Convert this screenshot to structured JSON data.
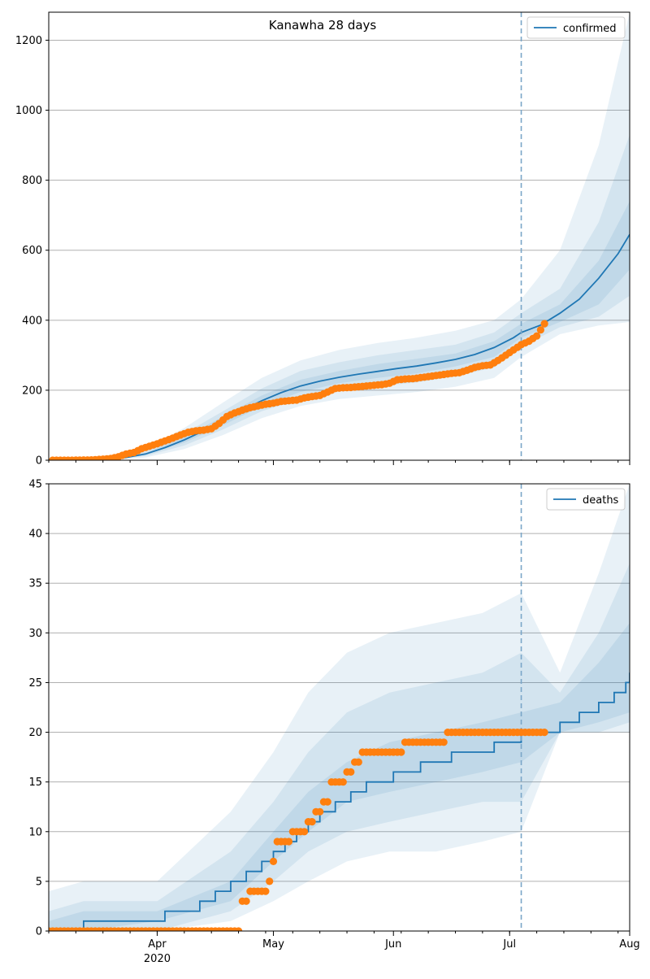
{
  "figure": {
    "title": "Kanawha 28 days"
  },
  "colors": {
    "model": "#1f77b4",
    "observed": "#ff7f0e",
    "band": "#1f77b4",
    "grid": "#b0b0b0",
    "cutoff": "#7aa6c8"
  },
  "x_axis": {
    "ticks": [
      {
        "date": "2020-04-01",
        "label": "Apr",
        "sublabel": "2020"
      },
      {
        "date": "2020-05-01",
        "label": "May",
        "sublabel": ""
      },
      {
        "date": "2020-06-01",
        "label": "Jun",
        "sublabel": ""
      },
      {
        "date": "2020-07-01",
        "label": "Jul",
        "sublabel": ""
      },
      {
        "date": "2020-08-01",
        "label": "Aug",
        "sublabel": ""
      }
    ],
    "range": [
      "2020-03-04",
      "2020-08-01"
    ]
  },
  "chart_data": [
    {
      "type": "line",
      "panel": "top",
      "title": "Kanawha 28 days",
      "legend": {
        "label": "confirmed",
        "position": "top-right"
      },
      "ylim": [
        0,
        1280
      ],
      "yticks": [
        0,
        200,
        400,
        600,
        800,
        1000,
        1200
      ],
      "grid": "horizontal",
      "cutoff_date": "2020-07-04",
      "model": {
        "x": [
          "2020-03-04",
          "2020-03-14",
          "2020-03-19",
          "2020-03-24",
          "2020-03-29",
          "2020-04-03",
          "2020-04-08",
          "2020-04-13",
          "2020-04-18",
          "2020-04-23",
          "2020-04-28",
          "2020-05-03",
          "2020-05-08",
          "2020-05-13",
          "2020-05-18",
          "2020-05-23",
          "2020-05-28",
          "2020-06-02",
          "2020-06-07",
          "2020-06-12",
          "2020-06-17",
          "2020-06-22",
          "2020-06-27",
          "2020-07-02",
          "2020-07-04",
          "2020-07-09",
          "2020-07-14",
          "2020-07-19",
          "2020-07-24",
          "2020-07-29",
          "2020-08-01"
        ],
        "y": [
          0,
          1,
          3,
          8,
          18,
          36,
          58,
          84,
          112,
          143,
          170,
          193,
          212,
          226,
          237,
          246,
          254,
          262,
          269,
          278,
          288,
          302,
          322,
          350,
          365,
          386,
          420,
          460,
          520,
          590,
          645
        ]
      },
      "bands": [
        {
          "level": "inner",
          "x": [
            "2020-03-04",
            "2020-03-19",
            "2020-03-29",
            "2020-04-08",
            "2020-04-18",
            "2020-04-28",
            "2020-05-08",
            "2020-05-18",
            "2020-05-28",
            "2020-06-07",
            "2020-06-17",
            "2020-06-27",
            "2020-07-04",
            "2020-07-14",
            "2020-07-24",
            "2020-08-01"
          ],
          "upper": [
            0,
            4,
            21,
            66,
            125,
            185,
            230,
            255,
            275,
            290,
            305,
            340,
            390,
            445,
            570,
            740
          ],
          "lower": [
            0,
            2,
            15,
            50,
            100,
            155,
            195,
            220,
            235,
            248,
            268,
            295,
            350,
            395,
            445,
            545
          ]
        },
        {
          "level": "middle",
          "x": [
            "2020-03-04",
            "2020-03-19",
            "2020-03-29",
            "2020-04-08",
            "2020-04-18",
            "2020-04-28",
            "2020-05-08",
            "2020-05-18",
            "2020-05-28",
            "2020-06-07",
            "2020-06-17",
            "2020-06-27",
            "2020-07-04",
            "2020-07-14",
            "2020-07-24",
            "2020-08-01"
          ],
          "upper": [
            0,
            6,
            25,
            76,
            140,
            205,
            255,
            280,
            300,
            315,
            330,
            365,
            420,
            490,
            680,
            930
          ],
          "lower": [
            0,
            1,
            12,
            42,
            88,
            140,
            175,
            200,
            212,
            222,
            240,
            265,
            325,
            380,
            410,
            470
          ]
        },
        {
          "level": "outer",
          "x": [
            "2020-03-04",
            "2020-03-19",
            "2020-03-29",
            "2020-04-08",
            "2020-04-18",
            "2020-04-28",
            "2020-05-08",
            "2020-05-18",
            "2020-05-28",
            "2020-06-07",
            "2020-06-17",
            "2020-06-27",
            "2020-07-04",
            "2020-07-14",
            "2020-07-24",
            "2020-08-01"
          ],
          "upper": [
            0,
            10,
            33,
            92,
            165,
            235,
            285,
            315,
            335,
            350,
            370,
            400,
            460,
            600,
            900,
            1280
          ],
          "lower": [
            0,
            0,
            8,
            32,
            72,
            120,
            155,
            175,
            185,
            195,
            210,
            235,
            295,
            360,
            385,
            395
          ]
        }
      ],
      "observed": {
        "x": [
          "2020-03-05",
          "2020-03-10",
          "2020-03-15",
          "2020-03-18",
          "2020-03-20",
          "2020-03-22",
          "2020-03-24",
          "2020-03-26",
          "2020-03-28",
          "2020-03-30",
          "2020-04-01",
          "2020-04-03",
          "2020-04-05",
          "2020-04-07",
          "2020-04-09",
          "2020-04-11",
          "2020-04-13",
          "2020-04-15",
          "2020-04-17",
          "2020-04-19",
          "2020-04-21",
          "2020-04-23",
          "2020-04-25",
          "2020-04-27",
          "2020-04-29",
          "2020-05-01",
          "2020-05-03",
          "2020-05-05",
          "2020-05-07",
          "2020-05-09",
          "2020-05-11",
          "2020-05-13",
          "2020-05-15",
          "2020-05-17",
          "2020-05-19",
          "2020-05-21",
          "2020-05-23",
          "2020-05-25",
          "2020-05-27",
          "2020-05-29",
          "2020-05-31",
          "2020-06-02",
          "2020-06-04",
          "2020-06-06",
          "2020-06-08",
          "2020-06-10",
          "2020-06-12",
          "2020-06-14",
          "2020-06-16",
          "2020-06-18",
          "2020-06-20",
          "2020-06-22",
          "2020-06-24",
          "2020-06-26",
          "2020-06-28",
          "2020-06-30",
          "2020-07-02",
          "2020-07-04",
          "2020-07-06",
          "2020-07-08",
          "2020-07-10"
        ],
        "y": [
          0,
          0,
          1,
          3,
          5,
          10,
          18,
          22,
          33,
          40,
          47,
          55,
          63,
          72,
          80,
          84,
          86,
          90,
          105,
          125,
          135,
          143,
          150,
          155,
          160,
          163,
          168,
          170,
          172,
          178,
          182,
          185,
          195,
          205,
          207,
          208,
          210,
          212,
          214,
          216,
          220,
          230,
          232,
          233,
          236,
          239,
          242,
          245,
          248,
          250,
          257,
          265,
          270,
          272,
          285,
          300,
          315,
          330,
          340,
          355,
          390
        ]
      }
    },
    {
      "type": "line",
      "panel": "bottom",
      "legend": {
        "label": "deaths",
        "position": "top-right"
      },
      "ylim": [
        0,
        45
      ],
      "yticks": [
        0,
        5,
        10,
        15,
        20,
        25,
        30,
        35,
        40,
        45
      ],
      "grid": "horizontal",
      "cutoff_date": "2020-07-04",
      "model": {
        "x": [
          "2020-03-04",
          "2020-03-13",
          "2020-04-03",
          "2020-04-12",
          "2020-04-16",
          "2020-04-20",
          "2020-04-24",
          "2020-04-28",
          "2020-05-01",
          "2020-05-04",
          "2020-05-07",
          "2020-05-10",
          "2020-05-13",
          "2020-05-17",
          "2020-05-21",
          "2020-05-25",
          "2020-06-01",
          "2020-06-08",
          "2020-06-16",
          "2020-06-27",
          "2020-07-04",
          "2020-07-09",
          "2020-07-14",
          "2020-07-19",
          "2020-07-24",
          "2020-07-28",
          "2020-07-31",
          "2020-08-01"
        ],
        "y": [
          0,
          1,
          2,
          3,
          4,
          5,
          6,
          7,
          8,
          9,
          10,
          11,
          12,
          13,
          14,
          15,
          16,
          17,
          18,
          19,
          20,
          20,
          21,
          22,
          23,
          24,
          25,
          26
        ]
      },
      "bands": [
        {
          "level": "inner",
          "x": [
            "2020-03-04",
            "2020-03-13",
            "2020-04-01",
            "2020-04-20",
            "2020-05-01",
            "2020-05-10",
            "2020-05-20",
            "2020-05-31",
            "2020-06-12",
            "2020-06-24",
            "2020-07-04",
            "2020-07-14",
            "2020-07-24",
            "2020-08-01"
          ],
          "upper": [
            1,
            2,
            2,
            5,
            10,
            14,
            17,
            19,
            20,
            21,
            22,
            23,
            27,
            31
          ],
          "lower": [
            0,
            0,
            1,
            3,
            7,
            10,
            13,
            14,
            15,
            16,
            17,
            20,
            21,
            22
          ]
        },
        {
          "level": "middle",
          "x": [
            "2020-03-04",
            "2020-03-13",
            "2020-04-01",
            "2020-04-20",
            "2020-05-01",
            "2020-05-10",
            "2020-05-20",
            "2020-05-31",
            "2020-06-12",
            "2020-06-24",
            "2020-07-04",
            "2020-07-14",
            "2020-07-24",
            "2020-08-01"
          ],
          "upper": [
            2,
            3,
            3,
            8,
            13,
            18,
            22,
            24,
            25,
            26,
            28,
            24,
            30,
            37
          ],
          "lower": [
            0,
            0,
            0,
            2,
            5,
            8,
            10,
            11,
            12,
            13,
            13,
            20,
            20,
            21
          ]
        },
        {
          "level": "outer",
          "x": [
            "2020-03-04",
            "2020-03-13",
            "2020-04-01",
            "2020-04-20",
            "2020-05-01",
            "2020-05-10",
            "2020-05-20",
            "2020-05-31",
            "2020-06-12",
            "2020-06-24",
            "2020-07-04",
            "2020-07-14",
            "2020-07-24",
            "2020-08-01"
          ],
          "upper": [
            4,
            5,
            5,
            12,
            18,
            24,
            28,
            30,
            31,
            32,
            34,
            26,
            36,
            45
          ],
          "lower": [
            0,
            0,
            0,
            1,
            3,
            5,
            7,
            8,
            8,
            9,
            10,
            20,
            20,
            20
          ]
        }
      ],
      "observed": {
        "x": [
          "2020-03-04",
          "2020-03-16",
          "2020-03-30",
          "2020-04-13",
          "2020-04-21",
          "2020-04-23",
          "2020-04-24",
          "2020-04-25",
          "2020-04-26",
          "2020-04-28",
          "2020-04-30",
          "2020-05-01",
          "2020-05-02",
          "2020-05-04",
          "2020-05-06",
          "2020-05-08",
          "2020-05-10",
          "2020-05-12",
          "2020-05-14",
          "2020-05-16",
          "2020-05-18",
          "2020-05-20",
          "2020-05-22",
          "2020-05-24",
          "2020-05-28",
          "2020-06-01",
          "2020-06-04",
          "2020-06-09",
          "2020-06-15",
          "2020-06-25",
          "2020-07-04",
          "2020-07-10"
        ],
        "y": [
          0,
          0,
          0,
          0,
          0,
          3,
          3,
          4,
          4,
          4,
          5,
          7,
          9,
          9,
          10,
          10,
          11,
          12,
          13,
          15,
          15,
          16,
          17,
          18,
          18,
          18,
          19,
          19,
          20,
          20,
          20,
          20
        ]
      }
    }
  ]
}
